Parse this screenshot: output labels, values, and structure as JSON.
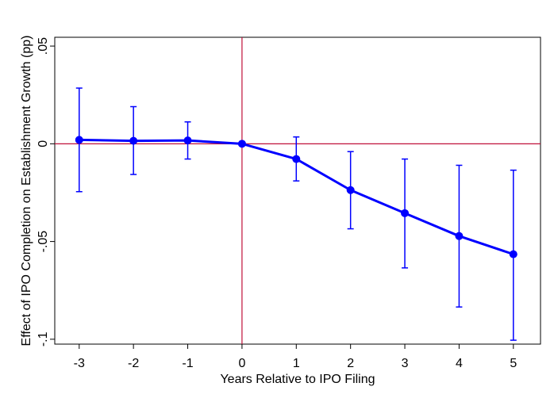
{
  "chart_data": {
    "type": "line",
    "title": "",
    "xlabel": "Years Relative to IPO Filing",
    "ylabel": "Effect of IPO Completion on Establishment Growth (pp)",
    "x_ticks": [
      -3,
      -2,
      -1,
      0,
      1,
      2,
      3,
      4,
      5
    ],
    "x_tick_labels": [
      "-3",
      "-2",
      "-1",
      "0",
      "1",
      "2",
      "3",
      "4",
      "5"
    ],
    "y_ticks": [
      -0.1,
      -0.05,
      0,
      0.05
    ],
    "y_tick_labels": [
      "-.1",
      "-.05",
      "0",
      ".05"
    ],
    "xlim": [
      -3.45,
      5.5
    ],
    "ylim": [
      -0.1025,
      0.0545
    ],
    "grid": false,
    "legend": "none",
    "reference_lines": {
      "x": 0,
      "y": 0,
      "color": "#c0103a"
    },
    "series_color": "#0000ff",
    "series": [
      {
        "x": [
          -3,
          -2,
          -1,
          0,
          1,
          2,
          3,
          4,
          5
        ],
        "y": [
          0.002,
          0.0015,
          0.0017,
          0,
          -0.0078,
          -0.0237,
          -0.0355,
          -0.0472,
          -0.0565
        ],
        "ci_low": [
          -0.0245,
          -0.0157,
          -0.0078,
          0,
          -0.019,
          -0.0435,
          -0.0635,
          -0.0835,
          -0.1005
        ],
        "ci_high": [
          0.0285,
          0.019,
          0.0112,
          0,
          0.0035,
          -0.004,
          -0.0078,
          -0.011,
          -0.0135
        ]
      }
    ]
  }
}
